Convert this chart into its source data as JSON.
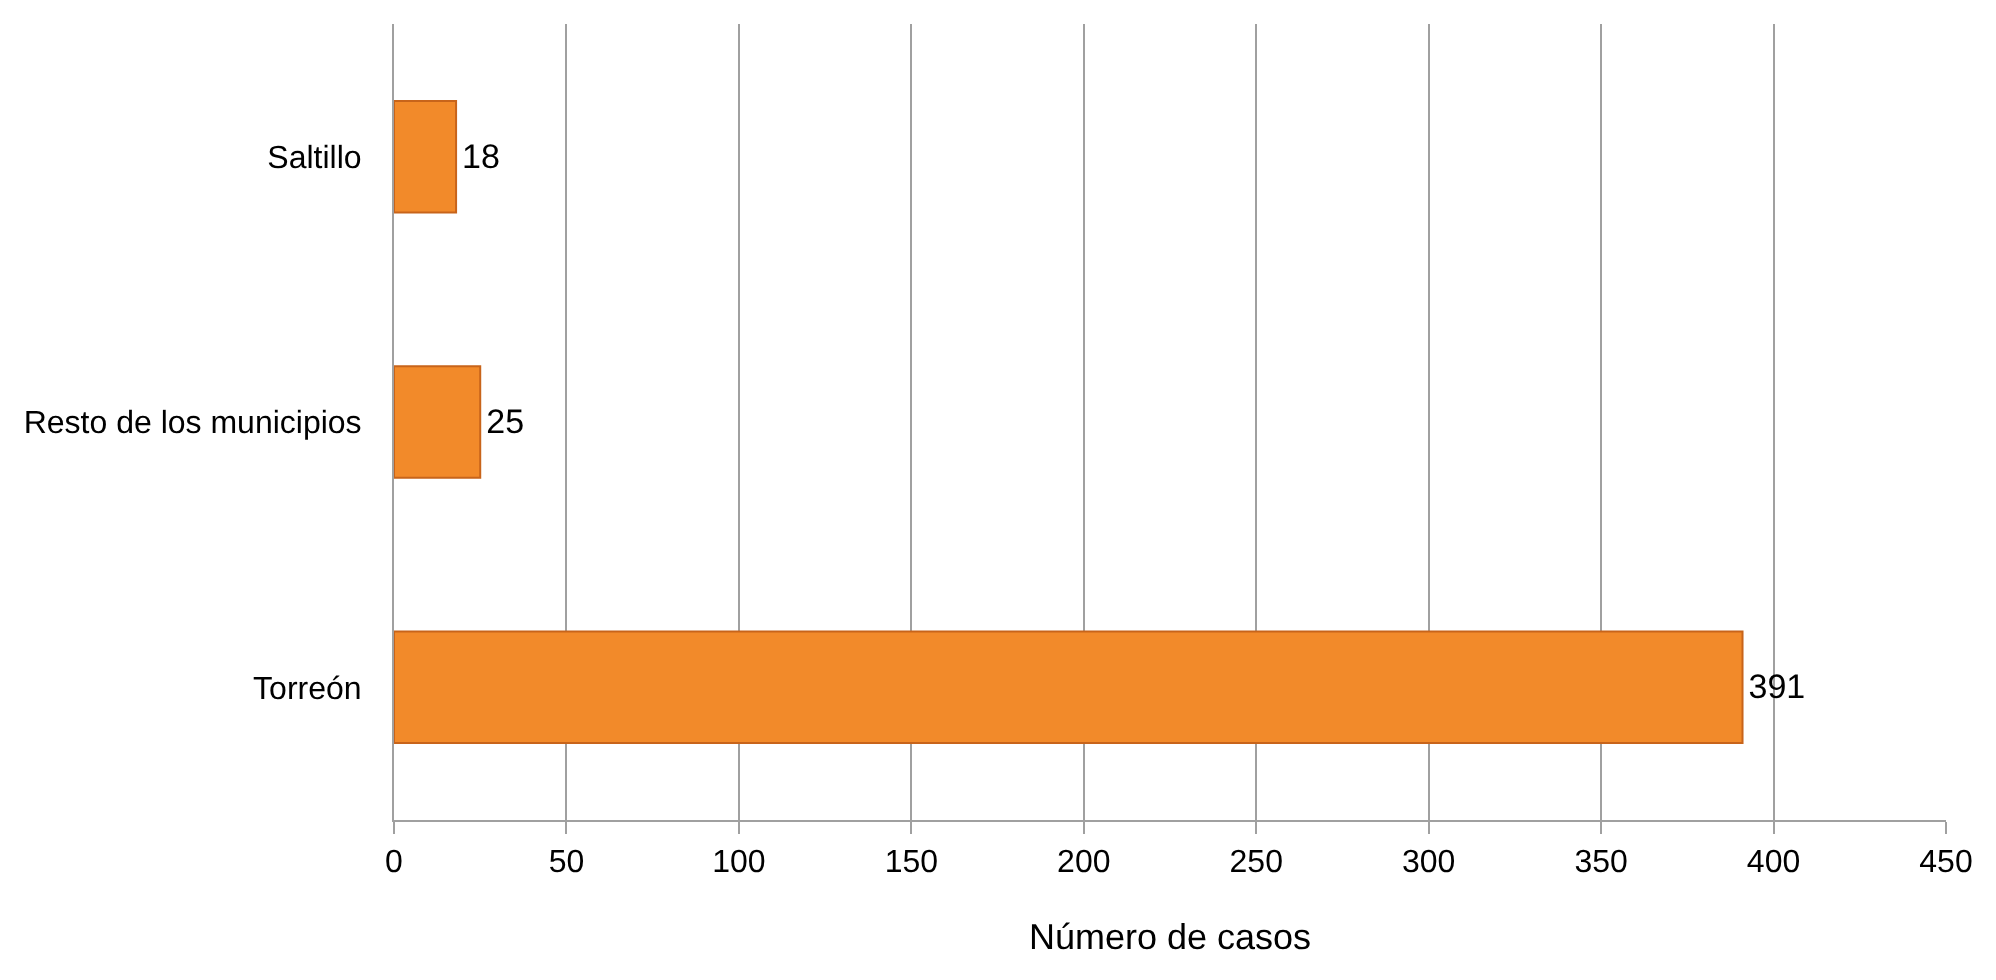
{
  "chart_data": {
    "type": "bar",
    "orientation": "horizontal",
    "xlabel": "Número de casos",
    "categories": [
      "Saltillo",
      "Resto de los municipios",
      "Torreón"
    ],
    "values": [
      18,
      25,
      391
    ],
    "color": "#f28a2a",
    "xlim": [
      0,
      450
    ],
    "xticks": [
      0,
      50,
      100,
      150,
      200,
      250,
      300,
      350,
      400,
      450
    ],
    "grid": "x",
    "data_labels": true,
    "legend": false
  }
}
